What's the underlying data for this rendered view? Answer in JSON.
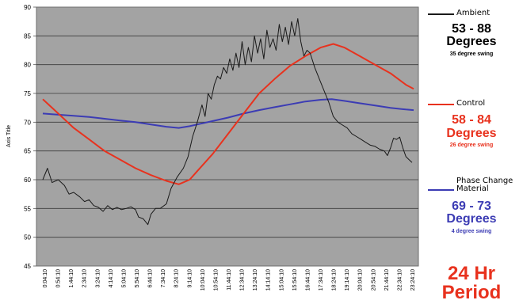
{
  "chart_data": {
    "type": "line",
    "title": "",
    "xlabel": "",
    "ylabel": "Axis Title",
    "ylim": [
      45,
      90
    ],
    "yticks": [
      45,
      50,
      55,
      60,
      65,
      70,
      75,
      80,
      85,
      90
    ],
    "grid": true,
    "legend_position": "right",
    "x_tick_labels": [
      "0:04:10",
      "0:54:10",
      "1:44:10",
      "2:34:10",
      "3:24:10",
      "4:14:10",
      "5:04:10",
      "5:54:10",
      "6:44:10",
      "7:34:10",
      "8:24:10",
      "9:14:10",
      "10:04:10",
      "10:54:10",
      "11:44:10",
      "12:34:10",
      "13:24:10",
      "14:14:10",
      "15:04:10",
      "15:54:10",
      "16:44:10",
      "17:34:10",
      "18:24:10",
      "19:14:10",
      "20:04:10",
      "20:54:10",
      "21:44:10",
      "22:34:10",
      "23:24:10"
    ],
    "series": [
      {
        "name": "Ambient",
        "color": "#1a1a1a",
        "points": [
          [
            0,
            60
          ],
          [
            0.3,
            62
          ],
          [
            0.6,
            59.5
          ],
          [
            1,
            60
          ],
          [
            1.4,
            59
          ],
          [
            1.7,
            57.5
          ],
          [
            2,
            57.8
          ],
          [
            2.4,
            57
          ],
          [
            2.7,
            56.2
          ],
          [
            3,
            56.5
          ],
          [
            3.3,
            55.5
          ],
          [
            3.6,
            55.2
          ],
          [
            3.9,
            54.5
          ],
          [
            4.2,
            55.5
          ],
          [
            4.5,
            54.8
          ],
          [
            4.8,
            55.2
          ],
          [
            5.1,
            54.8
          ],
          [
            5.4,
            55
          ],
          [
            5.7,
            55.3
          ],
          [
            6,
            54.8
          ],
          [
            6.2,
            53.5
          ],
          [
            6.5,
            53.2
          ],
          [
            6.8,
            52.2
          ],
          [
            7,
            54
          ],
          [
            7.3,
            55
          ],
          [
            7.6,
            55
          ],
          [
            8,
            55.8
          ],
          [
            8.3,
            58.5
          ],
          [
            8.7,
            60.5
          ],
          [
            9.1,
            62
          ],
          [
            9.4,
            64
          ],
          [
            9.7,
            67.5
          ],
          [
            10,
            70
          ],
          [
            10.3,
            73
          ],
          [
            10.5,
            71
          ],
          [
            10.7,
            75
          ],
          [
            10.9,
            74
          ],
          [
            11.1,
            76.5
          ],
          [
            11.3,
            78
          ],
          [
            11.5,
            77.5
          ],
          [
            11.7,
            79.5
          ],
          [
            11.9,
            78.5
          ],
          [
            12.1,
            81
          ],
          [
            12.3,
            79
          ],
          [
            12.5,
            82
          ],
          [
            12.7,
            79.5
          ],
          [
            12.9,
            84
          ],
          [
            13.1,
            80
          ],
          [
            13.3,
            83
          ],
          [
            13.5,
            80.5
          ],
          [
            13.7,
            85
          ],
          [
            13.9,
            82
          ],
          [
            14.1,
            84.5
          ],
          [
            14.3,
            81
          ],
          [
            14.5,
            86
          ],
          [
            14.7,
            83
          ],
          [
            14.9,
            84.5
          ],
          [
            15.1,
            82.5
          ],
          [
            15.3,
            87
          ],
          [
            15.5,
            84
          ],
          [
            15.7,
            86.5
          ],
          [
            15.9,
            83.5
          ],
          [
            16.1,
            87.5
          ],
          [
            16.3,
            85
          ],
          [
            16.5,
            88
          ],
          [
            16.7,
            84
          ],
          [
            16.9,
            81.5
          ],
          [
            17.1,
            82.5
          ],
          [
            17.3,
            82
          ],
          [
            17.6,
            79.5
          ],
          [
            17.9,
            77.5
          ],
          [
            18.2,
            75.5
          ],
          [
            18.5,
            73.5
          ],
          [
            18.8,
            71
          ],
          [
            19.1,
            70
          ],
          [
            19.4,
            69.5
          ],
          [
            19.7,
            69
          ],
          [
            20,
            68
          ],
          [
            20.3,
            67.5
          ],
          [
            20.6,
            67
          ],
          [
            20.9,
            66.5
          ],
          [
            21.2,
            66
          ],
          [
            21.5,
            65.8
          ],
          [
            21.8,
            65.3
          ],
          [
            22.1,
            65
          ],
          [
            22.3,
            64.2
          ],
          [
            22.5,
            65.5
          ],
          [
            22.7,
            67.2
          ],
          [
            22.9,
            67
          ],
          [
            23.1,
            67.4
          ],
          [
            23.3,
            65.5
          ],
          [
            23.5,
            64
          ],
          [
            23.7,
            63.5
          ],
          [
            23.9,
            63
          ]
        ]
      },
      {
        "name": "Control",
        "color": "#e8321e",
        "points": [
          [
            0,
            74
          ],
          [
            1,
            71.5
          ],
          [
            2,
            69
          ],
          [
            3,
            67
          ],
          [
            4,
            65
          ],
          [
            5,
            63.5
          ],
          [
            6,
            62
          ],
          [
            7,
            60.8
          ],
          [
            8,
            59.8
          ],
          [
            8.8,
            59.2
          ],
          [
            9.5,
            60
          ],
          [
            10,
            61.5
          ],
          [
            11,
            64.5
          ],
          [
            12,
            68
          ],
          [
            13,
            71.5
          ],
          [
            14,
            75
          ],
          [
            15,
            77.5
          ],
          [
            16,
            79.8
          ],
          [
            17,
            81.5
          ],
          [
            18,
            83
          ],
          [
            18.8,
            83.6
          ],
          [
            19.5,
            83
          ],
          [
            20.5,
            81.5
          ],
          [
            21.5,
            80
          ],
          [
            22.5,
            78.5
          ],
          [
            23.5,
            76.5
          ],
          [
            24,
            75.8
          ]
        ]
      },
      {
        "name": "Phase Change Material",
        "color": "#3c3cb4",
        "points": [
          [
            0,
            71.5
          ],
          [
            1,
            71.3
          ],
          [
            2,
            71.1
          ],
          [
            3,
            70.9
          ],
          [
            4,
            70.6
          ],
          [
            5,
            70.3
          ],
          [
            6,
            70
          ],
          [
            7,
            69.6
          ],
          [
            8,
            69.2
          ],
          [
            8.8,
            69
          ],
          [
            9.5,
            69.3
          ],
          [
            10,
            69.6
          ],
          [
            11,
            70.2
          ],
          [
            12,
            70.8
          ],
          [
            13,
            71.5
          ],
          [
            14,
            72.1
          ],
          [
            15,
            72.6
          ],
          [
            16,
            73.1
          ],
          [
            17,
            73.6
          ],
          [
            18,
            73.9
          ],
          [
            18.7,
            74
          ],
          [
            19.5,
            73.7
          ],
          [
            20.5,
            73.3
          ],
          [
            21.5,
            72.9
          ],
          [
            22.5,
            72.5
          ],
          [
            23.5,
            72.2
          ],
          [
            24,
            72.1
          ]
        ]
      }
    ]
  },
  "legend": {
    "ambient": {
      "label": "Ambient",
      "range": "53 - 88",
      "unit": "Degrees",
      "swing": "35 degree swing",
      "color": "#000000"
    },
    "control": {
      "label": "Control",
      "range": "58 - 84",
      "unit": "Degrees",
      "swing": "26 degree swing",
      "color": "#e8321e"
    },
    "pcm": {
      "label_line1": "Phase Change",
      "label_line2": "Material",
      "range": "69 - 73",
      "unit": "Degrees",
      "swing": "4 degree swing",
      "color": "#3c3cb4"
    }
  },
  "period": {
    "line1": "24 Hr",
    "line2": "Period"
  }
}
